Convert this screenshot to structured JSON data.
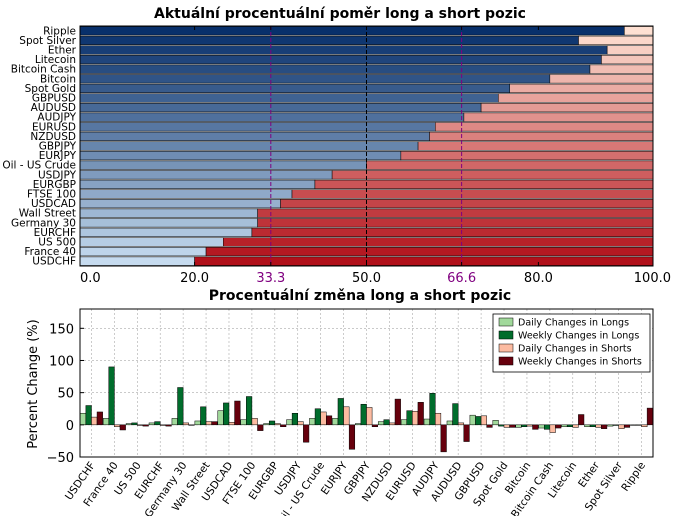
{
  "chart_data": [
    {
      "type": "bar",
      "orientation": "horizontal",
      "stacked": true,
      "title": "Aktuální procentuální poměr long a short pozic",
      "categories": [
        "Ripple",
        "Spot Silver",
        "Ether",
        "Litecoin",
        "Bitcoin Cash",
        "Bitcoin",
        "Spot Gold",
        "GBPUSD",
        "AUDUSD",
        "AUDJPY",
        "EURUSD",
        "NZDUSD",
        "GBPJPY",
        "EURJPY",
        "Oil - US Crude",
        "USDJPY",
        "EURGBP",
        "FTSE 100",
        "USDCAD",
        "Wall Street",
        "Germany 30",
        "EURCHF",
        "US 500",
        "France 40",
        "USDCHF"
      ],
      "series": [
        {
          "role": "long",
          "values": [
            95,
            87,
            92,
            91,
            89,
            82,
            75,
            73,
            70,
            67,
            62,
            61,
            59,
            56,
            50,
            44,
            41,
            37,
            35,
            31,
            31,
            30,
            25,
            22,
            20
          ]
        },
        {
          "role": "short",
          "values": [
            5,
            13,
            8,
            9,
            11,
            18,
            25,
            27,
            30,
            33,
            38,
            39,
            41,
            44,
            50,
            56,
            59,
            63,
            65,
            69,
            69,
            70,
            75,
            78,
            80
          ]
        }
      ],
      "xlim": [
        0,
        100
      ],
      "xticks": [
        "0.0",
        "20.0",
        "33.3",
        "50.0",
        "66.6",
        "80.0",
        "100.0"
      ],
      "highlight_ticks": [
        "33.3",
        "66.6"
      ],
      "reference_lines": [
        33.3,
        50,
        66.6
      ],
      "colors": {
        "long_dark": "#08306b",
        "long_light": "#c6dbef",
        "short_light": "#fee0d2",
        "short_dark": "#b1101a",
        "highlight": "#800080"
      }
    },
    {
      "type": "bar",
      "title": "Procentuální změna long a short pozic",
      "ylabel": "Percent Change (%)",
      "categories": [
        "USDCHF",
        "France 40",
        "US 500",
        "EURCHF",
        "Germany 30",
        "Wall Street",
        "USDCAD",
        "FTSE 100",
        "EURGBP",
        "USDJPY",
        "Oil - US Crude",
        "EURJPY",
        "GBPJPY",
        "NZDUSD",
        "EURUSD",
        "AUDJPY",
        "AUDUSD",
        "GBPUSD",
        "Spot Gold",
        "Bitcoin",
        "Bitcoin Cash",
        "Litecoin",
        "Ether",
        "Spot Silver",
        "Ripple"
      ],
      "series": [
        {
          "name": "Daily Changes in Longs",
          "color": "#a1d99b",
          "values": [
            18,
            10,
            2,
            3,
            10,
            6,
            22,
            8,
            2,
            8,
            10,
            10,
            2,
            5,
            8,
            9,
            6,
            15,
            7,
            -4,
            -5,
            -3,
            -3,
            -2,
            0
          ]
        },
        {
          "name": "Weekly Changes in Longs",
          "color": "#006d2c",
          "values": [
            30,
            90,
            3,
            5,
            58,
            28,
            34,
            44,
            6,
            18,
            25,
            41,
            32,
            8,
            22,
            49,
            33,
            13,
            -2,
            -3,
            -7,
            -3,
            -3,
            -1,
            0
          ]
        },
        {
          "name": "Daily Changes in Shorts",
          "color": "#fcbba1",
          "values": [
            12,
            -3,
            -1,
            -1,
            3,
            5,
            4,
            10,
            2,
            5,
            20,
            28,
            27,
            3,
            21,
            18,
            3,
            14,
            -4,
            -2,
            -12,
            -4,
            -4,
            -6,
            -3
          ]
        },
        {
          "name": "Weekly Changes in Shorts",
          "color": "#67000d",
          "values": [
            20,
            -8,
            -2,
            -2,
            0,
            5,
            37,
            -9,
            -3,
            -27,
            14,
            -38,
            -3,
            40,
            35,
            -42,
            -26,
            -4,
            -4,
            -7,
            -5,
            16,
            -6,
            -4,
            26
          ]
        }
      ],
      "ylim": [
        -50,
        180
      ],
      "yticks": [
        "−50",
        "0",
        "50",
        "100",
        "150"
      ],
      "grid": true,
      "legend_position": "top-right"
    }
  ]
}
